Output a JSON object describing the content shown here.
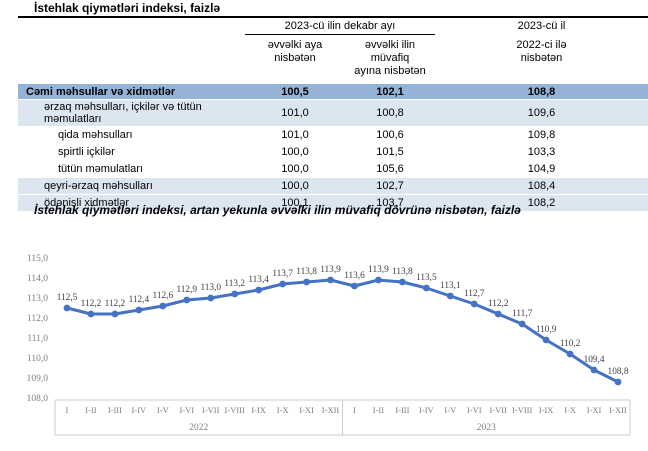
{
  "table": {
    "title": "İstehlak qiymətləri indeksi, faizlə",
    "group_header": "2023-cü ilin dekabr ayı",
    "col2_header": "əvvəlki aya\nnisbətən",
    "col3_header": "əvvəlki ilin müvafiq\nayına nisbətən",
    "col4_header_top": "2023-cü il",
    "col4_header_rest": "2022-ci ilə\nnisbətən",
    "rows": [
      {
        "label": "Cəmi məhsullar və xidmətlər",
        "values": [
          "100,5",
          "102,1",
          "108,8"
        ],
        "style": "total",
        "indent": 0
      },
      {
        "label": "ərzaq məhsulları, içkilər və tütün məmulatları",
        "values": [
          "101,0",
          "100,8",
          "109,6"
        ],
        "style": "band",
        "indent": 1
      },
      {
        "label": "qida məhsulları",
        "values": [
          "101,0",
          "100,6",
          "109,8"
        ],
        "style": "plain",
        "indent": 2
      },
      {
        "label": "spirtli içkilər",
        "values": [
          "100,0",
          "101,5",
          "103,3"
        ],
        "style": "plain",
        "indent": 2
      },
      {
        "label": "tütün məmulatları",
        "values": [
          "100,0",
          "105,6",
          "104,9"
        ],
        "style": "plain",
        "indent": 2
      },
      {
        "label": "qeyri-ərzaq məhsulları",
        "values": [
          "100,0",
          "102,7",
          "108,4"
        ],
        "style": "band",
        "indent": 1
      },
      {
        "label": "ödənişli xidmətlər",
        "values": [
          "100,1",
          "103,7",
          "108,2"
        ],
        "style": "band",
        "indent": 1
      }
    ]
  },
  "chart_data": {
    "type": "line",
    "title": "İstehlak qiymətləri indeksi, artan yekunla əvvəlki ilin müvafiq dövrünə nisbətən, faizlə",
    "categories": [
      "I",
      "I-II",
      "I-III",
      "I-IV",
      "I-V",
      "I-VI",
      "I-VII",
      "I-VIII",
      "I-IX",
      "I-X",
      "I-XI",
      "I-XII"
    ],
    "year_groups": [
      "2022",
      "2023"
    ],
    "values": [
      112.5,
      112.2,
      112.2,
      112.4,
      112.6,
      112.9,
      113.0,
      113.2,
      113.4,
      113.7,
      113.8,
      113.9,
      113.6,
      113.9,
      113.8,
      113.5,
      113.1,
      112.7,
      112.2,
      111.7,
      110.9,
      110.2,
      109.4,
      108.8
    ],
    "ylim": [
      108.0,
      115.0
    ],
    "ytick_step": 1.0,
    "ytick_labels": [
      "115,0",
      "114,0",
      "113,0",
      "112,0",
      "111,0",
      "110,0",
      "109,0",
      "108,0"
    ],
    "grid": false,
    "legend": "none"
  },
  "colors": {
    "line": "#4472C4",
    "total_row_bg": "#95B3D7",
    "band_row_bg": "#DCE6F1",
    "axis_line": "#cccccc",
    "tick_text": "#7f7f7f",
    "data_label_text": "#3f3f46"
  }
}
